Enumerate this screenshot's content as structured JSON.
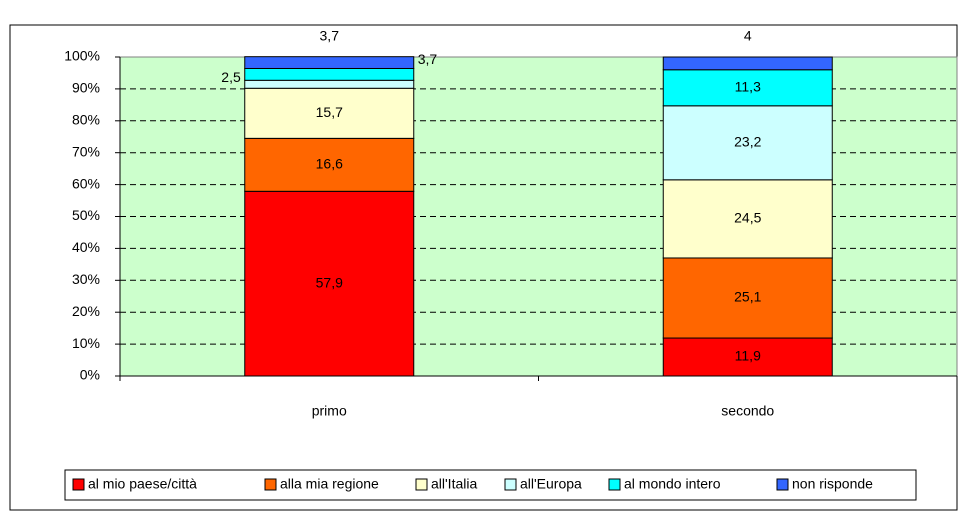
{
  "chart_data": {
    "type": "stacked_bar",
    "categories": [
      "primo",
      "secondo"
    ],
    "series": [
      {
        "name": "al mio paese/città",
        "color": "#ff0000",
        "values": [
          57.9,
          11.9
        ],
        "value_labels": [
          "57,9",
          "11,9"
        ]
      },
      {
        "name": "alla mia regione",
        "color": "#ff6600",
        "values": [
          16.6,
          25.1
        ],
        "value_labels": [
          "16,6",
          "25,1"
        ]
      },
      {
        "name": "all'Italia",
        "color": "#ffffcc",
        "values": [
          15.7,
          24.5
        ],
        "value_labels": [
          "15,7",
          "24,5"
        ]
      },
      {
        "name": "all'Europa",
        "color": "#ccffff",
        "values": [
          2.5,
          23.2
        ],
        "value_labels": [
          "2,5",
          "23,2"
        ]
      },
      {
        "name": "al mondo intero",
        "color": "#00ffff",
        "values": [
          3.7,
          11.3
        ],
        "value_labels": [
          "3,7",
          "11,3"
        ]
      },
      {
        "name": "non risponde",
        "color": "#3366ff",
        "values": [
          3.7,
          4
        ],
        "value_labels": [
          "3,7",
          "4"
        ]
      }
    ],
    "ylim": [
      0,
      100
    ],
    "yticks": [
      {
        "value": 0,
        "label": "0%"
      },
      {
        "value": 10,
        "label": "10%"
      },
      {
        "value": 20,
        "label": "20%"
      },
      {
        "value": 30,
        "label": "30%"
      },
      {
        "value": 40,
        "label": "40%"
      },
      {
        "value": 50,
        "label": "50%"
      },
      {
        "value": 60,
        "label": "60%"
      },
      {
        "value": 70,
        "label": "70%"
      },
      {
        "value": 80,
        "label": "80%"
      },
      {
        "value": 90,
        "label": "90%"
      },
      {
        "value": 100,
        "label": "100%"
      }
    ],
    "grid": true,
    "plot_background": "#ccffcc",
    "legend": "bottom"
  }
}
